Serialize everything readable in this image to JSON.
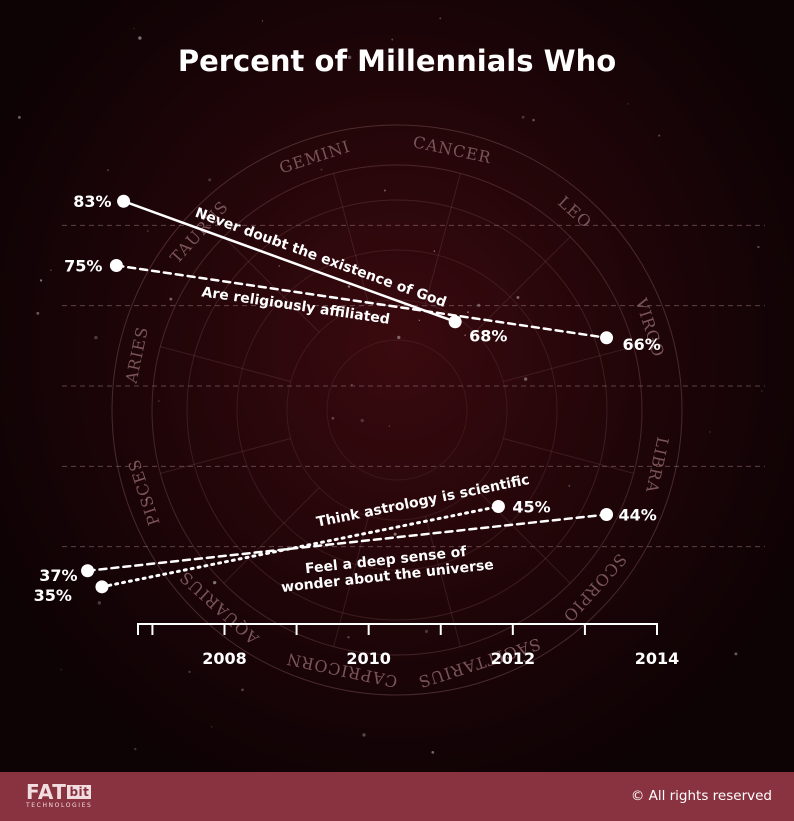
{
  "title": "Percent of Millennials Who",
  "zodiac_signs": [
    "GEMINI",
    "CANCER",
    "LEO",
    "VIRGO",
    "LIBRA",
    "SCORPIO",
    "SAGITTARIUS",
    "CAPRICORN",
    "AQUARIUS",
    "PISCES",
    "ARIES",
    "TAURUS"
  ],
  "chart_data": {
    "type": "line",
    "title": "Percent of Millennials Who",
    "x_ticks": [
      2008,
      2010,
      2012,
      2014
    ],
    "xlim": [
      2006.8,
      2014
    ],
    "ylim": [
      30,
      90
    ],
    "grid": true,
    "series": [
      {
        "name": "Never doubt the existence of God",
        "style": "solid",
        "points": [
          {
            "x": 2006.6,
            "y": 83,
            "label": "83%"
          },
          {
            "x": 2011.2,
            "y": 68,
            "label": "68%"
          }
        ]
      },
      {
        "name": "Are religiously affiliated",
        "style": "dashed",
        "points": [
          {
            "x": 2006.5,
            "y": 75,
            "label": "75%"
          },
          {
            "x": 2013.3,
            "y": 66,
            "label": "66%"
          }
        ]
      },
      {
        "name": "Think astrology is scientific",
        "style": "dotted",
        "points": [
          {
            "x": 2006.3,
            "y": 35,
            "label": "35%"
          },
          {
            "x": 2011.8,
            "y": 45,
            "label": "45%"
          }
        ]
      },
      {
        "name": "Feel a deep sense of wonder about the universe",
        "name_lines": [
          "Feel a deep sense of",
          "wonder about the universe"
        ],
        "style": "dashed",
        "points": [
          {
            "x": 2006.1,
            "y": 37,
            "label": "37%"
          },
          {
            "x": 2013.3,
            "y": 44,
            "label": "44%"
          }
        ]
      }
    ]
  },
  "footer": {
    "logo_main": "FAT",
    "logo_bit": "bit",
    "logo_sub": "TECHNOLOGIES",
    "copyright": "© All rights reserved"
  }
}
